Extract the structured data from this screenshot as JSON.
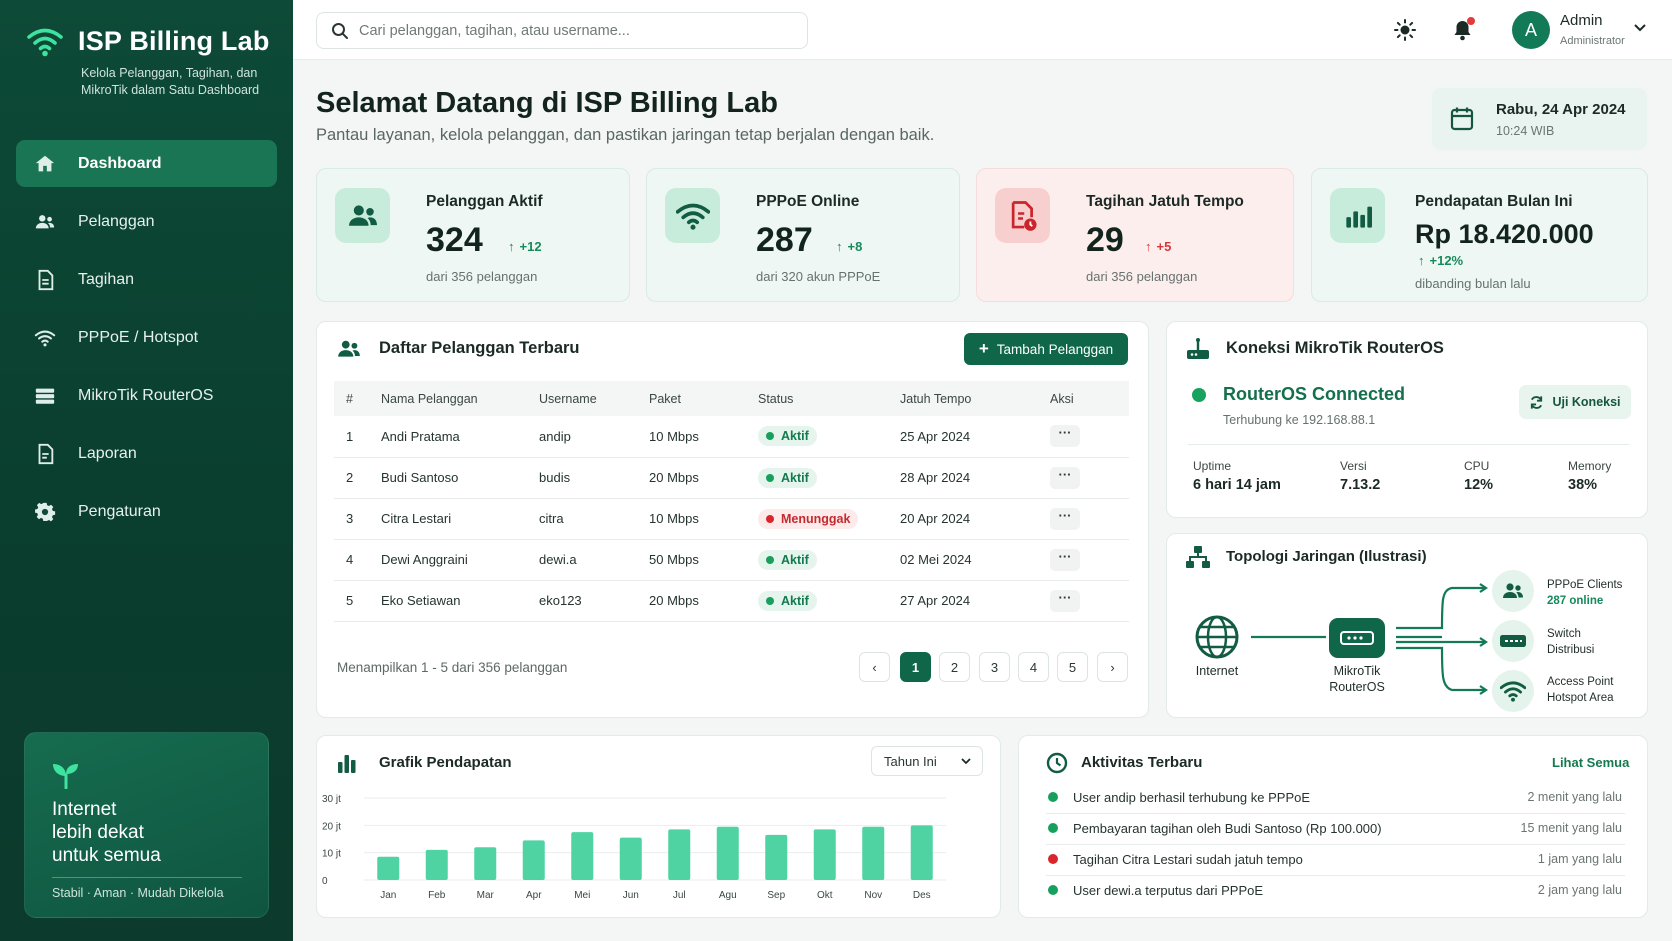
{
  "app": {
    "title": "ISP Billing Lab",
    "subtitle": "Kelola Pelanggan, Tagihan, dan MikroTik dalam Satu Dashboard"
  },
  "nav": [
    {
      "label": "Dashboard",
      "icon": "home-icon",
      "active": true
    },
    {
      "label": "Pelanggan",
      "icon": "users-icon"
    },
    {
      "label": "Tagihan",
      "icon": "document-icon"
    },
    {
      "label": "PPPoE / Hotspot",
      "icon": "wifi-icon"
    },
    {
      "label": "MikroTik RouterOS",
      "icon": "server-icon"
    },
    {
      "label": "Laporan",
      "icon": "report-icon"
    },
    {
      "label": "Pengaturan",
      "icon": "gear-icon"
    }
  ],
  "promo": {
    "text": "Internet\nlebih dekat\nuntuk semua",
    "footer": "Stabil · Aman · Mudah Dikelola"
  },
  "topbar": {
    "search_placeholder": "Cari pelanggan, tagihan, atau username...",
    "user_initial": "A",
    "user_name": "Admin",
    "user_role": "Administrator"
  },
  "header": {
    "title": "Selamat Datang di ISP Billing Lab",
    "subtitle": "Pantau layanan, kelola pelanggan, dan pastikan jaringan tetap berjalan dengan baik.",
    "date": "Rabu, 24 Apr 2024",
    "time": "10:24 WIB"
  },
  "stats": [
    {
      "title": "Pelanggan Aktif",
      "value": "324",
      "delta": "+12",
      "sub": "dari 356 pelanggan"
    },
    {
      "title": "PPPoE Online",
      "value": "287",
      "delta": "+8",
      "sub": "dari 320 akun PPPoE"
    },
    {
      "title": "Tagihan Jatuh Tempo",
      "value": "29",
      "delta": "+5",
      "sub": "dari 356 pelanggan"
    },
    {
      "title": "Pendapatan Bulan Ini",
      "value": "Rp 18.420.000",
      "delta": "+12%",
      "sub": "dibanding bulan lalu"
    }
  ],
  "customers": {
    "title": "Daftar Pelanggan Terbaru",
    "add_button": "Tambah Pelanggan",
    "columns": [
      "#",
      "Nama Pelanggan",
      "Username",
      "Paket",
      "Status",
      "Jatuh Tempo",
      "Aksi"
    ],
    "rows": [
      {
        "no": "1",
        "name": "Andi Pratama",
        "username": "andip",
        "paket": "10 Mbps",
        "status": "Aktif",
        "due": "25 Apr 2024"
      },
      {
        "no": "2",
        "name": "Budi Santoso",
        "username": "budis",
        "paket": "20 Mbps",
        "status": "Aktif",
        "due": "28 Apr 2024"
      },
      {
        "no": "3",
        "name": "Citra Lestari",
        "username": "citra",
        "paket": "10 Mbps",
        "status": "Menunggak",
        "due": "20 Apr 2024"
      },
      {
        "no": "4",
        "name": "Dewi Anggraini",
        "username": "dewi.a",
        "paket": "50 Mbps",
        "status": "Aktif",
        "due": "02 Mei 2024"
      },
      {
        "no": "5",
        "name": "Eko Setiawan",
        "username": "eko123",
        "paket": "20 Mbps",
        "status": "Aktif",
        "due": "27 Apr 2024"
      }
    ],
    "showing": "Menampilkan 1 - 5 dari 356 pelanggan",
    "pages": [
      "1",
      "2",
      "3",
      "4",
      "5"
    ],
    "current_page": "1",
    "action_label": "···"
  },
  "router": {
    "title": "Koneksi MikroTik RouterOS",
    "status": "RouterOS Connected",
    "host": "Terhubung ke 192.168.88.1",
    "test_button": "Uji Koneksi",
    "metrics": [
      {
        "label": "Uptime",
        "value": "6 hari 14 jam"
      },
      {
        "label": "Versi",
        "value": "7.13.2"
      },
      {
        "label": "CPU",
        "value": "12%"
      },
      {
        "label": "Memory",
        "value": "38%"
      }
    ]
  },
  "topology": {
    "title": "Topologi Jaringan (Ilustrasi)",
    "internet": "Internet",
    "router": "MikroTik\nRouterOS",
    "clients_title": "PPPoE Clients",
    "clients_count": "287 online",
    "switch": "Switch\nDistribusi",
    "ap": "Access Point\nHotspot Area"
  },
  "revenue": {
    "title": "Grafik Pendapatan",
    "period": "Tahun Ini"
  },
  "chart_data": {
    "type": "bar",
    "categories": [
      "Jan",
      "Feb",
      "Mar",
      "Apr",
      "Mei",
      "Jun",
      "Jul",
      "Agu",
      "Sep",
      "Okt",
      "Nov",
      "Des"
    ],
    "values": [
      8.5,
      11,
      12,
      14.5,
      17.5,
      15.5,
      18.5,
      19.5,
      16.5,
      18.5,
      19.5,
      20
    ],
    "yticks": [
      "0",
      "10 jt",
      "20 jt",
      "30 jt"
    ],
    "ylim": [
      0,
      30
    ],
    "grid": true,
    "colors": {
      "bar": "#4fd3a2"
    }
  },
  "activity": {
    "title": "Aktivitas Terbaru",
    "see_all": "Lihat Semua",
    "items": [
      {
        "text": "User andip berhasil terhubung ke PPPoE",
        "time": "2 menit yang lalu",
        "color": "#16a05c"
      },
      {
        "text": "Pembayaran tagihan oleh Budi Santoso (Rp 100.000)",
        "time": "15 menit yang lalu",
        "color": "#16a05c"
      },
      {
        "text": "Tagihan Citra Lestari sudah jatuh tempo",
        "time": "1 jam yang lalu",
        "color": "#d8262c"
      },
      {
        "text": "User dewi.a terputus dari PPPoE",
        "time": "2 jam yang lalu",
        "color": "#16a05c"
      }
    ]
  },
  "colors": {
    "primary": "#106649",
    "sidebar": "#0d4a37",
    "success": "#16a05c",
    "danger": "#d8262c"
  }
}
